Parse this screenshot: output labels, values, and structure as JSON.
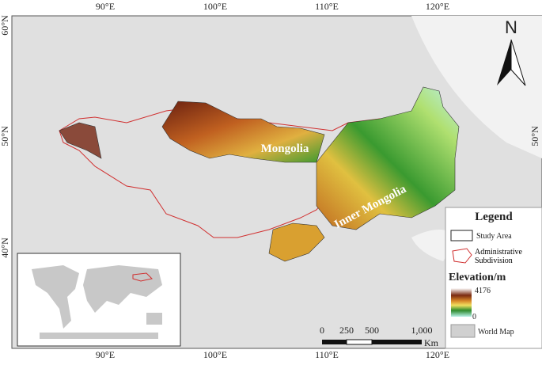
{
  "map": {
    "lon_labels": [
      "90°E",
      "100°E",
      "110°E",
      "120°E"
    ],
    "lat_labels": [
      "60°N",
      "50°N",
      "40°N"
    ],
    "north": "N",
    "regions": [
      "Mongolia",
      "Inner Mongolia"
    ],
    "legend": {
      "title": "Legend",
      "items": [
        "Study Area",
        "Administrative Subdivision"
      ],
      "elevation_title": "Elevation/m",
      "elevation_max": "4176",
      "elevation_min": "0",
      "world": "World Map"
    },
    "scale": {
      "labels": [
        "0",
        "250",
        "500",
        "1,000"
      ],
      "unit": "Km"
    }
  }
}
